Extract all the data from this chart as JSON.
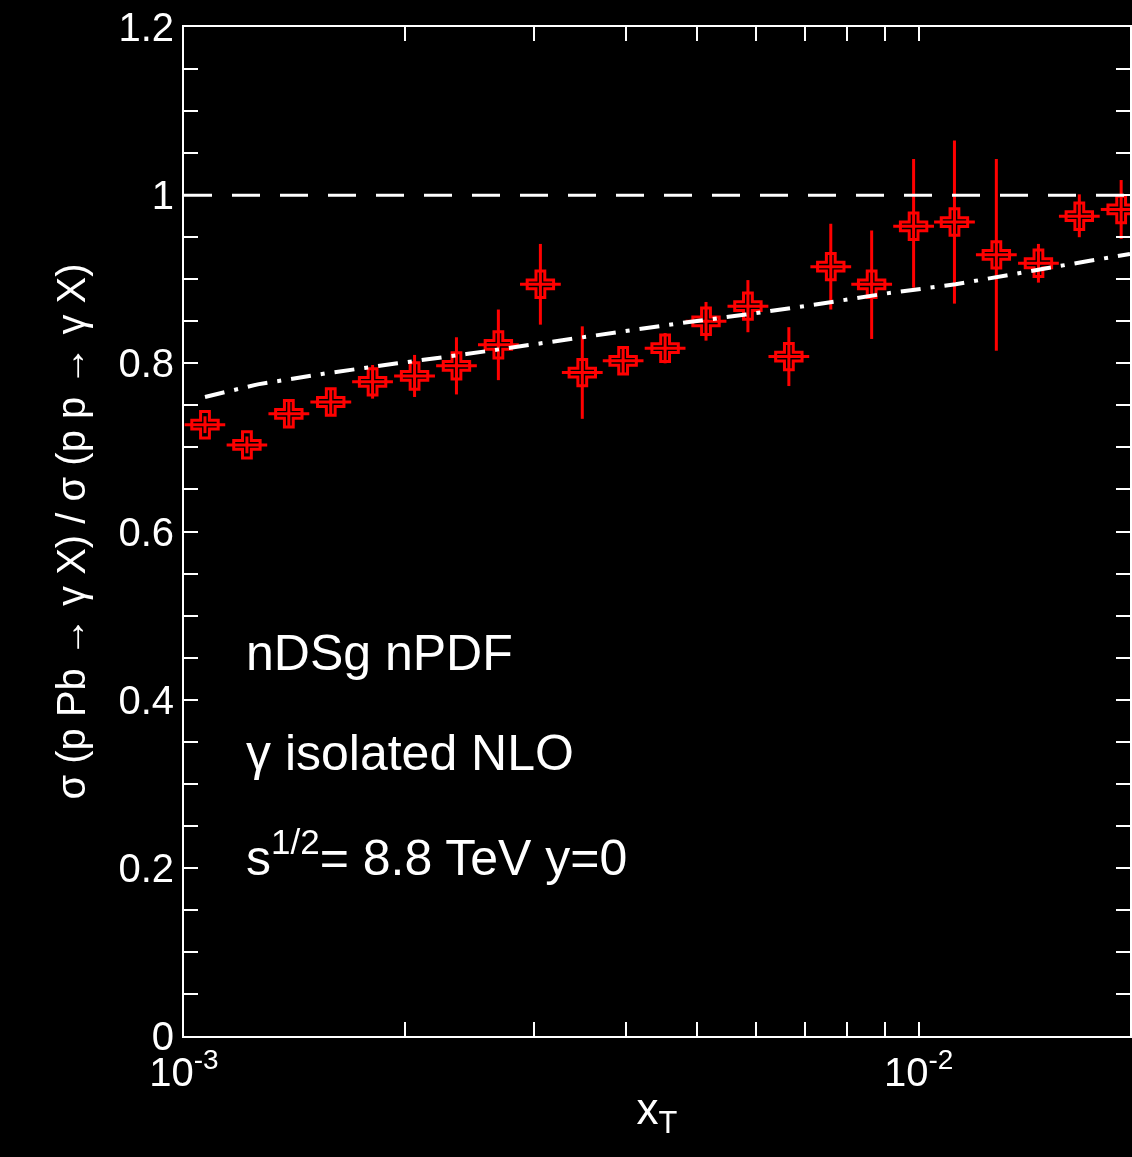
{
  "chart_data": {
    "type": "scatter",
    "xlabel": "x$_{T}$",
    "ylabel": "σ (p Pb → γ X) / σ (p p → γ X)",
    "log": "x",
    "xlim": [
      0.001,
      0.0194
    ],
    "xticks": [
      {
        "value": 0.001,
        "label": "10$^{-3}$"
      },
      {
        "value": 0.002,
        "label": null
      },
      {
        "value": 0.003,
        "label": null
      },
      {
        "value": 0.004,
        "label": null
      },
      {
        "value": 0.005,
        "label": null
      },
      {
        "value": 0.006,
        "label": null
      },
      {
        "value": 0.007,
        "label": null
      },
      {
        "value": 0.008,
        "label": null
      },
      {
        "value": 0.009,
        "label": null
      },
      {
        "value": 0.01,
        "label": "10$^{-2}$"
      }
    ],
    "ylim": [
      0,
      1.2
    ],
    "yticks": [
      0,
      {
        "value": 0.05,
        "label": null
      },
      {
        "value": 0.1,
        "label": null
      },
      {
        "value": 0.15,
        "label": null
      },
      0.2,
      {
        "value": 0.25,
        "label": null
      },
      {
        "value": 0.3,
        "label": null
      },
      {
        "value": 0.35,
        "label": null
      },
      0.4,
      {
        "value": 0.45,
        "label": null
      },
      {
        "value": 0.5,
        "label": null
      },
      {
        "value": 0.55,
        "label": null
      },
      0.6,
      {
        "value": 0.65,
        "label": null
      },
      {
        "value": 0.7,
        "label": null
      },
      {
        "value": 0.75,
        "label": null
      },
      0.8,
      {
        "value": 0.85,
        "label": null
      },
      {
        "value": 0.9,
        "label": null
      },
      {
        "value": 0.95,
        "label": null
      },
      1,
      {
        "value": 1.05,
        "label": null
      },
      {
        "value": 1.1,
        "label": null
      },
      {
        "value": 1.15,
        "label": null
      },
      1.2
    ],
    "annotations": [
      "nDSg nPDF",
      "γ isolated NLO",
      "s$^{1/2}$= 8.8 TeV y=0"
    ],
    "ref_lines": [
      {
        "axis": "y",
        "value": 1,
        "label": null,
        "color": "#ffffff",
        "line_style": "dashed"
      }
    ],
    "series": [
      {
        "color": "#ff0000",
        "marker": "cross",
        "x": [
          0.001068,
          0.001218,
          0.001389,
          0.001584,
          0.001806,
          0.00206,
          0.002349,
          0.002679,
          0.003056,
          0.003485,
          0.003961,
          0.004518,
          0.005136,
          0.005857,
          0.006659,
          0.007594,
          0.008632,
          0.009845,
          0.01119,
          0.01276,
          0.01456,
          0.01655,
          0.01887
        ],
        "values": [
          0.727,
          0.703,
          0.74,
          0.754,
          0.778,
          0.785,
          0.797,
          0.822,
          0.894,
          0.789,
          0.803,
          0.818,
          0.85,
          0.868,
          0.808,
          0.915,
          0.894,
          0.963,
          0.968,
          0.929,
          0.919,
          0.975,
          0.983
        ],
        "errors": [
          0.01,
          0.01,
          0.015,
          0.015,
          0.02,
          0.025,
          0.034,
          0.042,
          0.048,
          0.055,
          0.016,
          0.018,
          0.023,
          0.031,
          0.035,
          0.051,
          [
            0.829,
            0.958
          ],
          [
            0.89,
            1.043
          ],
          0.097,
          0.114,
          0.023,
          [
            0.95,
            1.001
          ],
          0.035
        ],
        "xerrors": [
          [
            0.001002,
            0.001138
          ],
          [
            0.001143,
            0.001298
          ],
          [
            0.001303,
            0.001481
          ],
          [
            0.001486,
            0.001689
          ],
          [
            0.001694,
            0.001925
          ],
          [
            0.001932,
            0.002196
          ],
          [
            0.002204,
            0.002504
          ],
          [
            0.002513,
            0.002856
          ],
          [
            0.002867,
            0.003258
          ],
          [
            0.003269,
            0.003715
          ],
          [
            0.003716,
            0.004222
          ],
          [
            0.004238,
            0.004816
          ],
          [
            0.004818,
            0.005475
          ],
          [
            0.005494,
            0.006244
          ],
          [
            0.006247,
            0.007098
          ],
          [
            0.007124,
            0.008095
          ],
          [
            0.008098,
            0.009202
          ],
          [
            0.009236,
            0.010495
          ],
          [
            0.010497,
            0.011929
          ],
          [
            0.01197,
            0.013602
          ],
          [
            0.013659,
            0.015521
          ],
          [
            0.015526,
            0.017642
          ],
          [
            0.017702,
            0.0194
          ]
        ]
      },
      {
        "type": "line",
        "color": "#ffffff",
        "line_style": "dashdot",
        "marker": "none",
        "x": [
          0.001068,
          0.00126,
          0.001559,
          0.001952,
          0.002422,
          0.003018,
          0.00467,
          0.00582,
          0.00724,
          0.00902,
          0.01123,
          0.0171,
          0.0194
        ],
        "values": [
          0.76,
          0.775,
          0.788,
          0.8,
          0.811,
          0.823,
          0.847,
          0.858,
          0.87,
          0.883,
          0.894,
          0.922,
          0.93
        ]
      }
    ]
  }
}
